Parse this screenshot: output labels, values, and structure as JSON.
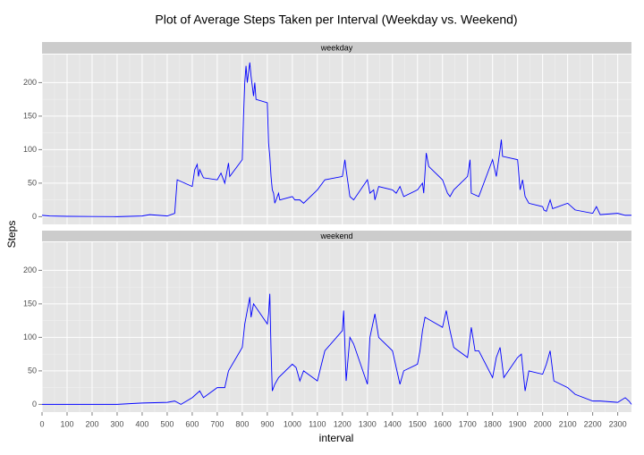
{
  "chart_data": {
    "type": "line",
    "title": "Plot of Average Steps Taken per Interval (Weekday vs. Weekend)",
    "xlabel": "interval",
    "ylabel": "Steps",
    "color": "#0000ff",
    "grid": true,
    "xlim": [
      0,
      2355
    ],
    "ylim": [
      -11.5,
      241.9
    ],
    "xticks": [
      0,
      100,
      200,
      300,
      400,
      500,
      600,
      700,
      800,
      900,
      1000,
      1100,
      1200,
      1300,
      1400,
      1500,
      1600,
      1700,
      1800,
      1900,
      2000,
      2100,
      2200,
      2300
    ],
    "yticks": [
      0,
      50,
      100,
      150,
      200
    ],
    "panels": [
      {
        "label": "weekday",
        "x": [
          0,
          30,
          100,
          200,
          300,
          400,
          430,
          500,
          530,
          540,
          600,
          610,
          620,
          625,
          630,
          645,
          700,
          715,
          730,
          745,
          750,
          800,
          805,
          810,
          815,
          820,
          830,
          835,
          845,
          850,
          855,
          900,
          905,
          910,
          915,
          920,
          925,
          930,
          940,
          945,
          950,
          1000,
          1010,
          1030,
          1045,
          1100,
          1130,
          1200,
          1210,
          1215,
          1230,
          1245,
          1300,
          1310,
          1325,
          1330,
          1345,
          1400,
          1415,
          1430,
          1445,
          1500,
          1520,
          1525,
          1535,
          1545,
          1600,
          1620,
          1630,
          1645,
          1700,
          1710,
          1715,
          1745,
          1800,
          1815,
          1830,
          1835,
          1840,
          1900,
          1910,
          1920,
          1930,
          1945,
          2000,
          2005,
          2015,
          2030,
          2040,
          2100,
          2130,
          2200,
          2215,
          2230,
          2300,
          2330,
          2355
        ],
        "values": [
          2,
          1,
          0.5,
          0.3,
          0,
          1,
          3,
          1,
          5,
          55,
          45,
          70,
          78,
          60,
          70,
          58,
          55,
          65,
          50,
          80,
          60,
          85,
          150,
          200,
          225,
          200,
          230,
          210,
          180,
          200,
          175,
          170,
          110,
          90,
          60,
          40,
          35,
          20,
          30,
          35,
          25,
          30,
          25,
          25,
          20,
          40,
          55,
          60,
          85,
          70,
          30,
          25,
          55,
          35,
          40,
          25,
          45,
          40,
          35,
          45,
          30,
          40,
          50,
          35,
          95,
          75,
          55,
          35,
          30,
          40,
          60,
          85,
          35,
          30,
          85,
          60,
          100,
          115,
          90,
          85,
          40,
          55,
          30,
          20,
          15,
          10,
          8,
          25,
          12,
          20,
          10,
          5,
          15,
          3,
          5,
          2,
          2
        ]
      },
      {
        "label": "weekend",
        "x": [
          0,
          100,
          200,
          300,
          400,
          500,
          530,
          555,
          600,
          630,
          645,
          700,
          730,
          745,
          800,
          810,
          830,
          835,
          845,
          900,
          905,
          910,
          915,
          920,
          930,
          945,
          1000,
          1015,
          1030,
          1045,
          1100,
          1130,
          1200,
          1205,
          1215,
          1230,
          1245,
          1300,
          1310,
          1330,
          1345,
          1400,
          1430,
          1445,
          1500,
          1510,
          1520,
          1530,
          1600,
          1615,
          1630,
          1645,
          1700,
          1715,
          1730,
          1745,
          1800,
          1815,
          1830,
          1845,
          1900,
          1915,
          1930,
          1945,
          2000,
          2015,
          2030,
          2045,
          2100,
          2130,
          2200,
          2230,
          2300,
          2330,
          2345,
          2355
        ],
        "values": [
          0,
          0,
          0,
          0,
          2,
          3,
          5,
          0,
          10,
          20,
          10,
          25,
          25,
          50,
          85,
          120,
          160,
          130,
          150,
          120,
          135,
          165,
          80,
          20,
          30,
          40,
          60,
          55,
          35,
          50,
          35,
          80,
          110,
          140,
          35,
          100,
          90,
          30,
          100,
          135,
          100,
          80,
          30,
          50,
          60,
          80,
          110,
          130,
          115,
          140,
          110,
          85,
          70,
          115,
          80,
          80,
          40,
          70,
          85,
          40,
          70,
          75,
          20,
          50,
          45,
          60,
          80,
          35,
          25,
          15,
          5,
          5,
          3,
          10,
          5,
          0
        ]
      }
    ]
  }
}
